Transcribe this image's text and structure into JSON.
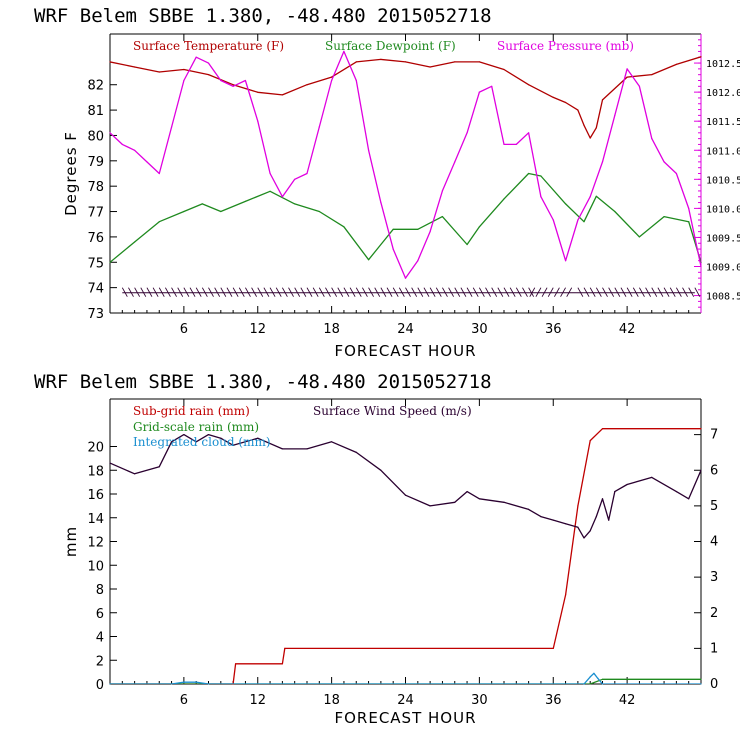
{
  "colors": {
    "temperature": "#b00000",
    "dewpoint": "#1f8a1f",
    "pressure": "#e000e0",
    "subgrid_rain": "#c00000",
    "gridscale_rain": "#1f8a1f",
    "cloud": "#1a8fd0",
    "wind": "#2a0030",
    "barbs": "#300030",
    "axis": "#000000"
  },
  "chart_data": [
    {
      "type": "line",
      "title": "WRF   Belem SBBE     1.380, -48.480  2015052718",
      "xlabel": "FORECAST HOUR",
      "ylabel": "Degrees F",
      "xlim": [
        0,
        48
      ],
      "ylim": [
        73,
        84
      ],
      "y2lim": [
        1008.2,
        1013.0
      ],
      "x_ticks": [
        "6",
        "12",
        "18",
        "24",
        "30",
        "36",
        "42"
      ],
      "y_ticks": [
        "73",
        "74",
        "75",
        "76",
        "77",
        "78",
        "79",
        "80",
        "81",
        "82"
      ],
      "y2_ticks": [
        "1008.5",
        "1009.0",
        "1009.5",
        "1010.0",
        "1010.5",
        "1011.0",
        "1011.5",
        "1012.0",
        "1012.5"
      ],
      "legend": [
        "Surface Temperature (F)",
        "Surface Dewpoint (F)",
        "Surface Pressure (mb)"
      ],
      "series": [
        {
          "name": "Surface Temperature (F)",
          "axis": "left",
          "x": [
            0,
            2,
            4,
            6,
            8,
            10,
            12,
            14,
            16,
            18,
            20,
            22,
            24,
            26,
            28,
            30,
            32,
            34,
            36,
            37,
            38,
            38.5,
            39,
            39.5,
            40,
            42,
            44,
            46,
            48
          ],
          "y": [
            82.9,
            82.7,
            82.5,
            82.6,
            82.4,
            82.0,
            81.7,
            81.6,
            82.0,
            82.3,
            82.9,
            83.0,
            82.9,
            82.7,
            82.9,
            82.9,
            82.6,
            82.0,
            81.5,
            81.3,
            81.0,
            80.4,
            79.9,
            80.3,
            81.4,
            82.3,
            82.4,
            82.8,
            83.1
          ]
        },
        {
          "name": "Surface Dewpoint (F)",
          "axis": "left",
          "x": [
            0,
            2,
            4,
            6,
            7.5,
            9,
            11,
            13,
            15,
            17,
            19,
            21,
            23,
            25,
            27,
            29,
            30,
            32,
            34,
            35,
            37,
            38.5,
            39.5,
            41,
            43,
            45,
            47,
            48
          ],
          "y": [
            75.0,
            75.8,
            76.6,
            77.0,
            77.3,
            77.0,
            77.4,
            77.8,
            77.3,
            77.0,
            76.4,
            75.1,
            76.3,
            76.3,
            76.8,
            75.7,
            76.4,
            77.5,
            78.5,
            78.4,
            77.3,
            76.6,
            77.6,
            77.0,
            76.0,
            76.8,
            76.6,
            75.0
          ]
        },
        {
          "name": "Surface Pressure (mb)",
          "axis": "right",
          "x": [
            0,
            1,
            2,
            3,
            4,
            5,
            6,
            7,
            8,
            9,
            10,
            11,
            12,
            13,
            14,
            15,
            16,
            17,
            18,
            19,
            20,
            21,
            22,
            23,
            24,
            25,
            26,
            27,
            28,
            29,
            30,
            31,
            32,
            33,
            34,
            35,
            36,
            37,
            38,
            39,
            40,
            41,
            42,
            43,
            44,
            45,
            46,
            47,
            48
          ],
          "y": [
            1011.3,
            1011.1,
            1011.0,
            1010.8,
            1010.6,
            1011.4,
            1012.2,
            1012.6,
            1012.5,
            1012.2,
            1012.1,
            1012.2,
            1011.5,
            1010.6,
            1010.2,
            1010.5,
            1010.6,
            1011.4,
            1012.2,
            1012.7,
            1012.2,
            1011.0,
            1010.1,
            1009.3,
            1008.8,
            1009.1,
            1009.6,
            1010.3,
            1010.8,
            1011.3,
            1012.0,
            1012.1,
            1011.1,
            1011.1,
            1011.3,
            1010.2,
            1009.8,
            1009.1,
            1009.8,
            1010.2,
            1010.8,
            1011.6,
            1012.4,
            1012.1,
            1011.2,
            1010.8,
            1010.6,
            1010.0,
            1009.0
          ]
        }
      ]
    },
    {
      "type": "line",
      "title": "WRF   Belem SBBE     1.380, -48.480  2015052718",
      "xlabel": "FORECAST HOUR",
      "ylabel": "mm",
      "xlim": [
        0,
        48
      ],
      "ylim": [
        0,
        24
      ],
      "y2lim": [
        0,
        8
      ],
      "x_ticks": [
        "6",
        "12",
        "18",
        "24",
        "30",
        "36",
        "42"
      ],
      "y_ticks": [
        "0",
        "2",
        "4",
        "6",
        "8",
        "10",
        "12",
        "14",
        "16",
        "18",
        "20"
      ],
      "y2_ticks": [
        "0",
        "1",
        "2",
        "3",
        "4",
        "5",
        "6",
        "7"
      ],
      "legend": [
        "Sub-grid rain (mm)",
        "Surface Wind Speed (m/s)",
        "Grid-scale rain (mm)",
        "Integrated cloud (mm)"
      ],
      "series": [
        {
          "name": "Sub-grid rain (mm)",
          "axis": "left",
          "x": [
            0,
            10,
            10.2,
            14,
            14.2,
            36,
            37,
            38,
            39,
            40,
            48
          ],
          "y": [
            0,
            0,
            1.7,
            1.7,
            3.0,
            3.0,
            7.5,
            15.0,
            20.5,
            21.5,
            21.5
          ]
        },
        {
          "name": "Surface Wind Speed (m/s)",
          "axis": "right",
          "x": [
            0,
            2,
            4,
            5,
            6,
            7,
            8,
            9,
            10,
            12,
            14,
            16,
            18,
            20,
            22,
            24,
            26,
            28,
            29,
            30,
            32,
            34,
            35,
            36,
            37,
            38,
            38.5,
            39,
            39.5,
            40,
            40.5,
            41,
            42,
            44,
            46,
            47,
            48
          ],
          "y": [
            6.2,
            5.9,
            6.1,
            6.8,
            7.0,
            6.8,
            7.0,
            6.9,
            6.7,
            6.9,
            6.6,
            6.6,
            6.8,
            6.5,
            6.0,
            5.3,
            5.0,
            5.1,
            5.4,
            5.2,
            5.1,
            4.9,
            4.7,
            4.6,
            4.5,
            4.4,
            4.1,
            4.3,
            4.7,
            5.2,
            4.6,
            5.4,
            5.6,
            5.8,
            5.4,
            5.2,
            6.0
          ]
        },
        {
          "name": "Grid-scale rain (mm)",
          "axis": "left",
          "x": [
            0,
            39,
            40,
            48
          ],
          "y": [
            0,
            0,
            0.4,
            0.4
          ]
        },
        {
          "name": "Integrated cloud (mm)",
          "axis": "left",
          "x": [
            0,
            5,
            6,
            7,
            8,
            38.5,
            39,
            39.3,
            39.6,
            40,
            48
          ],
          "y": [
            0,
            0,
            0.15,
            0.15,
            0,
            0,
            0.6,
            0.9,
            0.5,
            0,
            0
          ]
        }
      ]
    }
  ]
}
